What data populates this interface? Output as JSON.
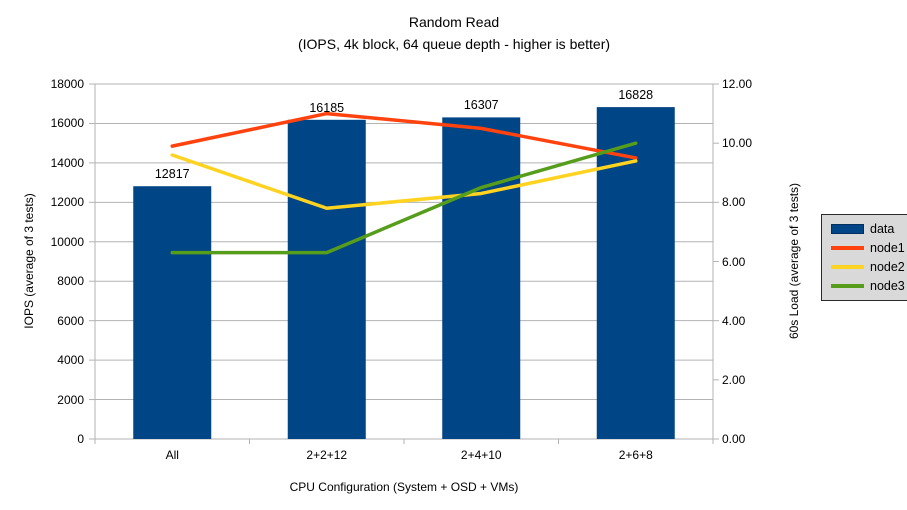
{
  "title": "Random Read",
  "subtitle": "(IOPS, 4k block, 64 queue depth - higher is better)",
  "chart_data": {
    "type": "bar+line",
    "categories": [
      "All",
      "2+2+12",
      "2+4+10",
      "2+6+8"
    ],
    "bar_series": {
      "name": "data",
      "axis": "left",
      "values": [
        12817,
        16185,
        16307,
        16828
      ],
      "data_labels": [
        "12817",
        "16185",
        "16307",
        "16828"
      ],
      "color": "#004586"
    },
    "line_series": [
      {
        "name": "node1",
        "axis": "right",
        "values": [
          9.9,
          11.0,
          10.5,
          9.5
        ],
        "color": "#FF420E"
      },
      {
        "name": "node2",
        "axis": "right",
        "values": [
          9.6,
          7.8,
          8.3,
          9.4
        ],
        "color": "#FFD320"
      },
      {
        "name": "node3",
        "axis": "right",
        "values": [
          6.3,
          6.3,
          8.5,
          10.0
        ],
        "color": "#579D1C"
      }
    ],
    "left_axis": {
      "label": "IOPS (average of 3 tests)",
      "min": 0,
      "max": 18000,
      "step": 2000,
      "tick_labels": [
        "0",
        "2000",
        "4000",
        "6000",
        "8000",
        "10000",
        "12000",
        "14000",
        "16000",
        "18000"
      ]
    },
    "right_axis": {
      "label": "60s Load (average of 3 tests)",
      "min": 0,
      "max": 12,
      "step": 2,
      "tick_labels": [
        "0.00",
        "2.00",
        "4.00",
        "6.00",
        "8.00",
        "10.00",
        "12.00"
      ]
    },
    "x_axis": {
      "label": "CPU Configuration (System + OSD + VMs)"
    },
    "legend": {
      "position": "right",
      "entries": [
        {
          "label": "data",
          "color": "#004586",
          "type": "box"
        },
        {
          "label": "node1",
          "color": "#FF420E",
          "type": "line"
        },
        {
          "label": "node2",
          "color": "#FFD320",
          "type": "line"
        },
        {
          "label": "node3",
          "color": "#579D1C",
          "type": "line"
        }
      ]
    },
    "grid": "horizontal",
    "gridline_color": "#b3b3b3",
    "axis_color": "#b3b3b3",
    "background": "#FFFFFF"
  }
}
